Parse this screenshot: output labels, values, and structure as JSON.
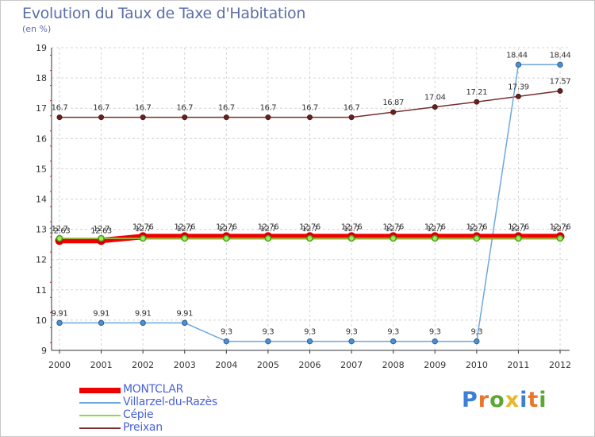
{
  "title": "Evolution du Taux de Taxe d'Habitation",
  "subtitle": "(en %)",
  "logo": {
    "text": "Proxiti",
    "letters": [
      {
        "ch": "P",
        "color": "#3d7fd6"
      },
      {
        "ch": "r",
        "color": "#e8762c"
      },
      {
        "ch": "o",
        "color": "#5aa832"
      },
      {
        "ch": "x",
        "color": "#e8b82c"
      },
      {
        "ch": "i",
        "color": "#3d7fd6"
      },
      {
        "ch": "t",
        "color": "#e8762c"
      },
      {
        "ch": "i",
        "color": "#5aa832"
      }
    ]
  },
  "chart_data": {
    "type": "line",
    "x": [
      "2000",
      "2001",
      "2002",
      "2003",
      "2004",
      "2005",
      "2006",
      "2007",
      "2008",
      "2009",
      "2010",
      "2011",
      "2012"
    ],
    "ylim": [
      9,
      19
    ],
    "yticks": [
      9,
      10,
      11,
      12,
      13,
      14,
      15,
      16,
      17,
      18,
      19
    ],
    "grid": true,
    "legend_position": "bottom-left",
    "series": [
      {
        "name": "MONTCLAR",
        "color": "#ee0000",
        "values": [
          12.63,
          12.63,
          12.76,
          12.76,
          12.76,
          12.76,
          12.76,
          12.76,
          12.76,
          12.76,
          12.76,
          12.76,
          12.76
        ],
        "labels": [
          "12.63",
          "12.63",
          "12.76",
          "12.76",
          "12.76",
          "12.76",
          "12.76",
          "12.76",
          "12.76",
          "12.76",
          "12.76",
          "12.76",
          "12.76"
        ]
      },
      {
        "name": "Villarzel-du-Razès",
        "color": "#6fa8dc",
        "values": [
          9.91,
          9.91,
          9.91,
          9.91,
          9.3,
          9.3,
          9.3,
          9.3,
          9.3,
          9.3,
          9.3,
          18.44,
          18.44
        ],
        "labels": [
          "9.91",
          "9.91",
          "9.91",
          "9.91",
          "9.3",
          "9.3",
          "9.3",
          "9.3",
          "9.3",
          "9.3",
          "9.3",
          "18.44",
          "18.44"
        ]
      },
      {
        "name": "Cépie",
        "color": "#88dd44",
        "values": [
          12.7,
          12.7,
          12.7,
          12.7,
          12.7,
          12.7,
          12.7,
          12.7,
          12.7,
          12.7,
          12.7,
          12.7,
          12.7
        ],
        "labels": [
          "12.7",
          "12.7",
          "12.7",
          "12.7",
          "12.7",
          "12.7",
          "12.7",
          "12.7",
          "12.7",
          "12.7",
          "12.7",
          "12.7",
          "12.7"
        ]
      },
      {
        "name": "Preixan",
        "color": "#7a2e2e",
        "values": [
          16.7,
          16.7,
          16.7,
          16.7,
          16.7,
          16.7,
          16.7,
          16.7,
          16.87,
          17.04,
          17.21,
          17.39,
          17.57
        ],
        "labels": [
          "16.7",
          "16.7",
          "16.7",
          "16.7",
          "16.7",
          "16.7",
          "16.7",
          "16.7",
          "16.87",
          "17.04",
          "17.21",
          "17.39",
          "17.57"
        ]
      }
    ]
  }
}
